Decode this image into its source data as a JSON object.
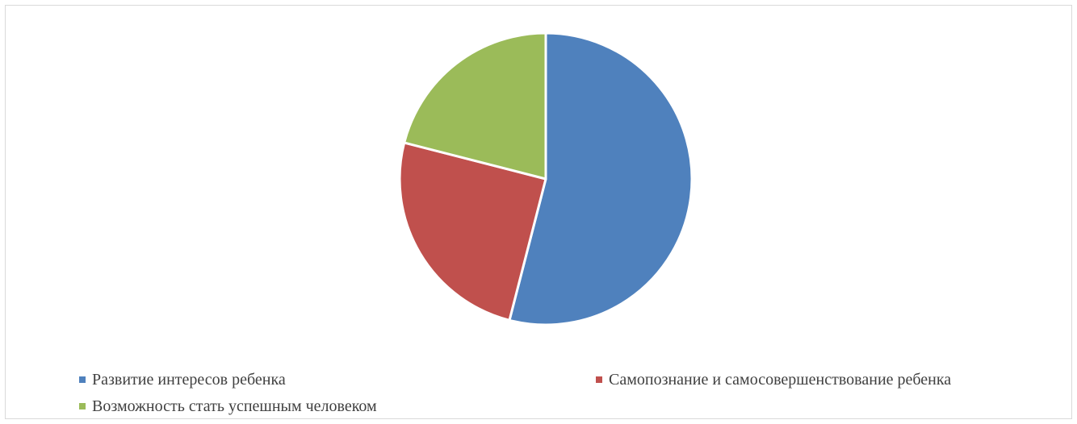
{
  "chart_data": {
    "type": "pie",
    "title": "",
    "categories": [
      "Развитие интересов ребенка",
      "Самопознание и самосовершенствование ребенка",
      "Возможность стать успешным человеком"
    ],
    "values": [
      54,
      25,
      21
    ],
    "unit": "%",
    "colors": [
      "#4f81bd",
      "#c0504d",
      "#9bbb59"
    ],
    "legend_position": "bottom",
    "start_angle": "top, clockwise"
  }
}
